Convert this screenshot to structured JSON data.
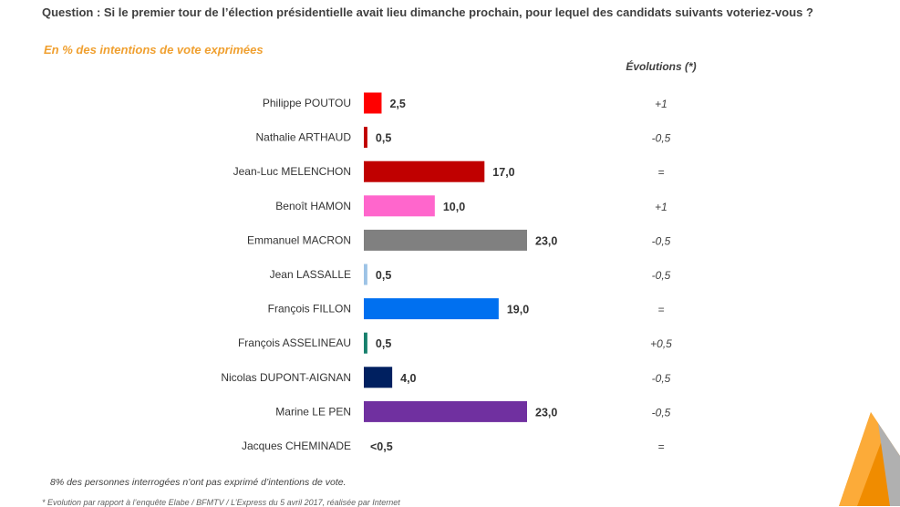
{
  "question": "Question : Si le premier tour de l’élection présidentielle avait lieu dimanche prochain, pour lequel des candidats suivants voteriez-vous ?",
  "subtitle": "En %  des intentions de vote exprimées",
  "evolutions_header": "Évolutions (*)",
  "note": "8% des personnes interrogées n’ont pas exprimé d’intentions de vote.",
  "footnote": "* Evolution par rapport à l’enquête Elabe / BFMTV / L’Express du 5 avril 2017, réalisée par Internet",
  "chart_data": {
    "type": "bar",
    "orientation": "horizontal",
    "title": "En %  des intentions de vote exprimées",
    "xlabel": "",
    "ylabel": "",
    "xlim": [
      0,
      23
    ],
    "categories": [
      "Philippe POUTOU",
      "Nathalie ARTHAUD",
      "Jean-Luc MELENCHON",
      "Benoît HAMON",
      "Emmanuel MACRON",
      "Jean LASSALLE",
      "François FILLON",
      "François ASSELINEAU",
      "Nicolas DUPONT-AIGNAN",
      "Marine LE PEN",
      "Jacques CHEMINADE"
    ],
    "values": [
      2.5,
      0.5,
      17.0,
      10.0,
      23.0,
      0.5,
      19.0,
      0.5,
      4.0,
      23.0,
      0
    ],
    "value_labels": [
      "2,5",
      "0,5",
      "17,0",
      "10,0",
      "23,0",
      "0,5",
      "19,0",
      "0,5",
      "4,0",
      "23,0",
      "<0,5"
    ],
    "colors": [
      "#ff0000",
      "#c00000",
      "#c00000",
      "#ff66cc",
      "#808080",
      "#9dc3e6",
      "#0070f0",
      "#17806d",
      "#002060",
      "#7030a0",
      "#ffffff"
    ],
    "evolutions": [
      "+1",
      "-0,5",
      "=",
      "+1",
      "-0,5",
      "-0,5",
      "=",
      "+0,5",
      "-0,5",
      "-0,5",
      "="
    ]
  }
}
